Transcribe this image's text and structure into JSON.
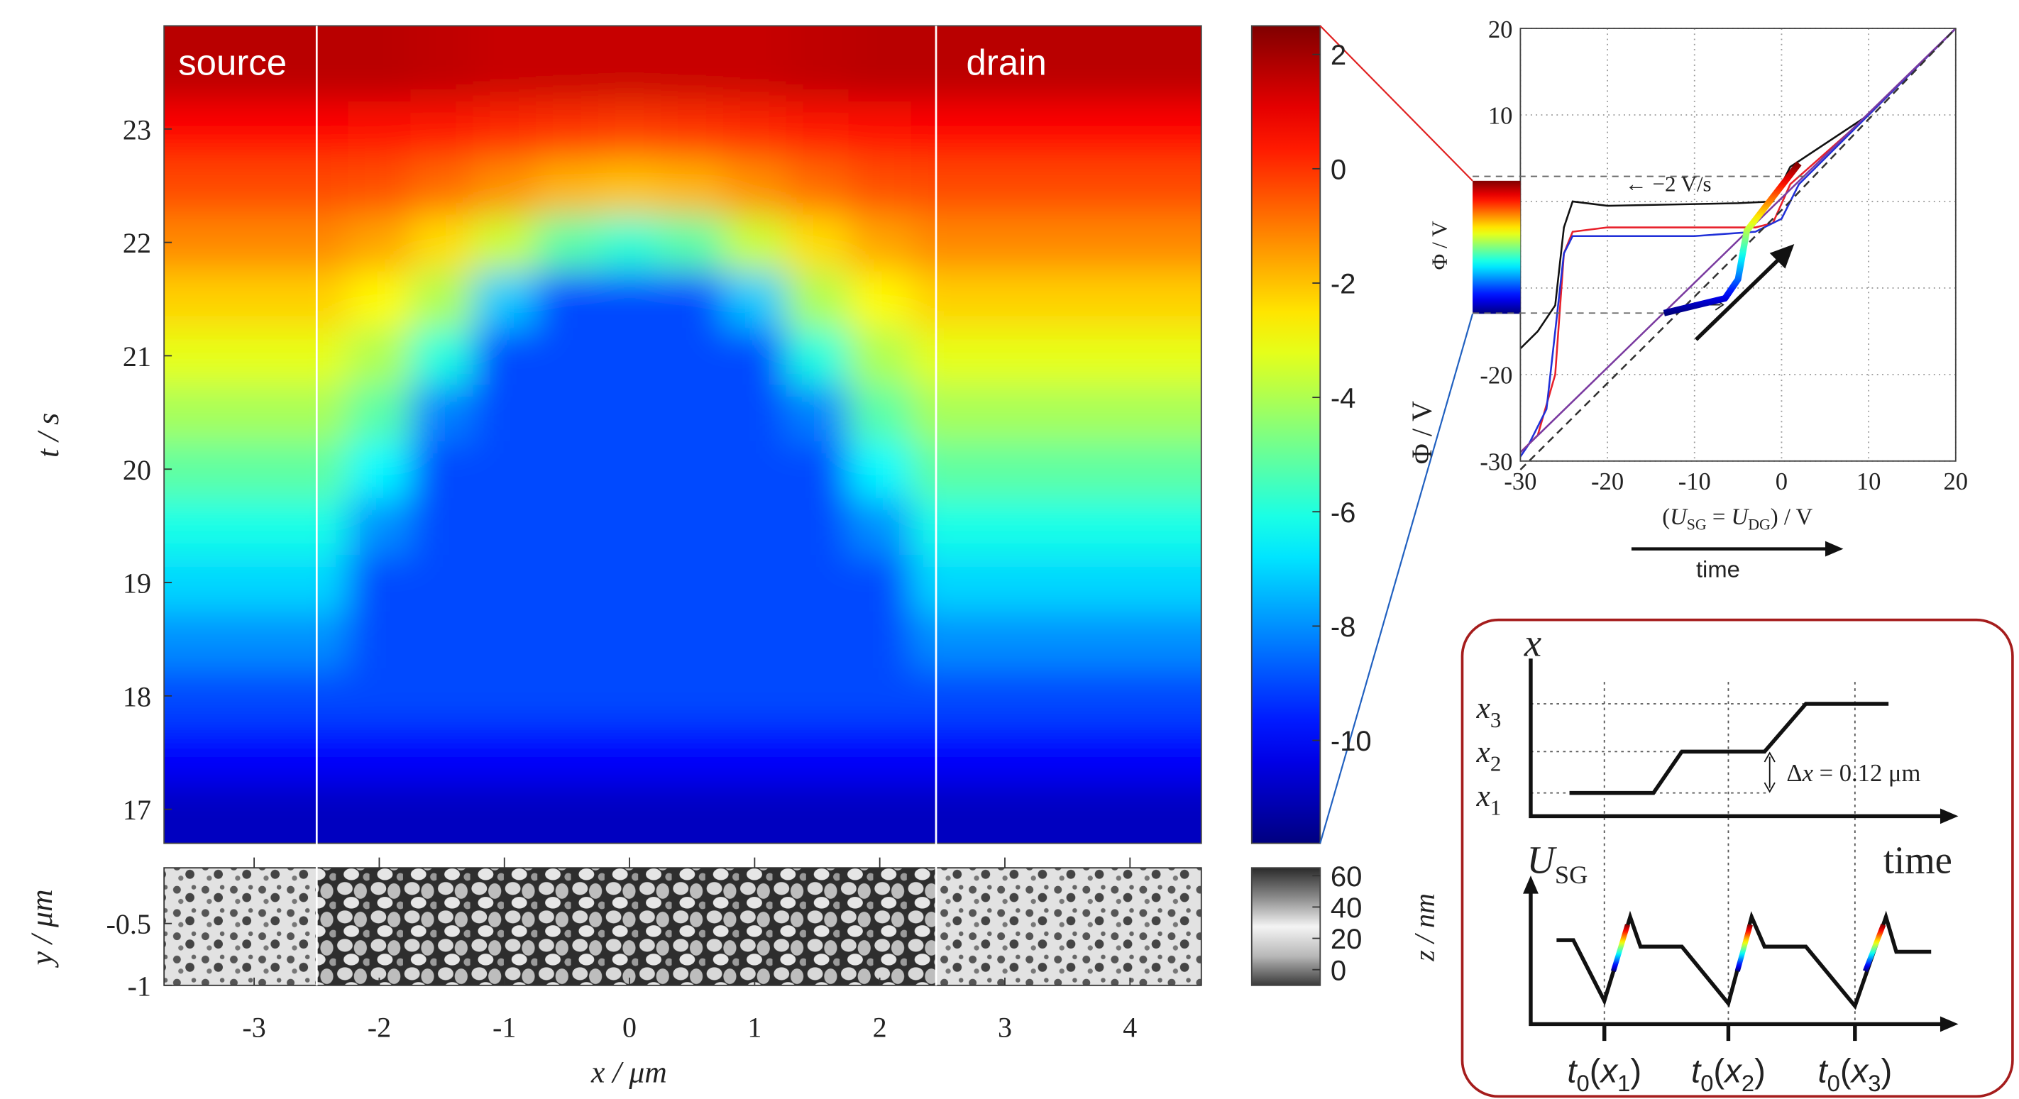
{
  "chart_data": [
    {
      "type": "heatmap",
      "colormap": "jet",
      "x": [
        -3.5,
        -3,
        -2.5,
        -2,
        -1.5,
        -1,
        -0.5,
        0,
        0.5,
        1,
        1.5,
        2,
        2.5,
        3,
        3.5,
        4,
        4.5
      ],
      "y": [
        17,
        17.5,
        18,
        18.5,
        19,
        19.5,
        20,
        20.5,
        21,
        21.5,
        22,
        22.5,
        23,
        23.5
      ],
      "z": [
        [
          -10.9,
          -10.9,
          -10.9,
          -10.9,
          -10.9,
          -10.9,
          -10.9,
          -10.9,
          -10.9,
          -10.9,
          -10.9,
          -10.9,
          -10.9,
          -10.9,
          -10.9,
          -10.9,
          -10.9
        ],
        [
          -10.0,
          -10.0,
          -10.0,
          -10.0,
          -10.0,
          -10.0,
          -10.0,
          -10.0,
          -10.0,
          -10.0,
          -10.0,
          -10.0,
          -10.0,
          -10.0,
          -10.0,
          -10.0,
          -10.0
        ],
        [
          -9.0,
          -9.0,
          -9.0,
          -9.0,
          -9.0,
          -9.0,
          -9.0,
          -9.0,
          -9.0,
          -9.0,
          -9.0,
          -9.0,
          -9.0,
          -9.0,
          -9.0,
          -9.0,
          -9.0
        ],
        [
          -8.0,
          -8.0,
          -8.0,
          -9.0,
          -9.0,
          -9.0,
          -9.0,
          -9.0,
          -9.0,
          -9.0,
          -9.0,
          -9.0,
          -8.0,
          -8.0,
          -8.0,
          -8.0,
          -8.0
        ],
        [
          -7.0,
          -7.0,
          -7.0,
          -9.0,
          -9.0,
          -9.0,
          -9.0,
          -9.0,
          -9.0,
          -9.0,
          -9.0,
          -9.0,
          -7.0,
          -7.0,
          -7.0,
          -7.0,
          -7.0
        ],
        [
          -6.1,
          -6.1,
          -6.1,
          -8.0,
          -9.0,
          -9.0,
          -9.0,
          -9.0,
          -9.0,
          -9.0,
          -9.0,
          -8.0,
          -6.1,
          -6.1,
          -6.1,
          -6.1,
          -6.1
        ],
        [
          -5.1,
          -5.1,
          -5.1,
          -6.5,
          -9.0,
          -9.0,
          -9.0,
          -9.0,
          -9.0,
          -9.0,
          -9.0,
          -6.5,
          -5.1,
          -5.1,
          -5.1,
          -5.1,
          -5.1
        ],
        [
          -4.1,
          -4.1,
          -4.1,
          -5.2,
          -8.2,
          -9.0,
          -9.0,
          -9.0,
          -9.0,
          -9.0,
          -8.2,
          -5.2,
          -4.1,
          -4.1,
          -4.1,
          -4.1,
          -4.1
        ],
        [
          -3.2,
          -3.2,
          -3.2,
          -4.0,
          -6.0,
          -9.0,
          -9.0,
          -9.0,
          -9.0,
          -9.0,
          -6.0,
          -4.0,
          -3.2,
          -3.2,
          -3.2,
          -3.2,
          -3.2
        ],
        [
          -2.2,
          -2.2,
          -2.2,
          -2.8,
          -4.0,
          -7.2,
          -9.0,
          -9.0,
          -9.0,
          -7.2,
          -4.0,
          -2.8,
          -2.2,
          -2.2,
          -2.2,
          -2.2,
          -2.2
        ],
        [
          -1.2,
          -1.2,
          -1.2,
          -1.6,
          -2.4,
          -3.6,
          -5.2,
          -5.8,
          -5.2,
          -3.6,
          -2.4,
          -1.6,
          -1.2,
          -1.2,
          -1.2,
          -1.2,
          -1.2
        ],
        [
          -0.3,
          -0.3,
          -0.3,
          -0.4,
          -0.8,
          -1.3,
          -1.8,
          -2.0,
          -1.8,
          -1.3,
          -0.8,
          -0.4,
          -0.3,
          -0.3,
          -0.3,
          -0.3,
          -0.3
        ],
        [
          0.7,
          0.7,
          0.7,
          0.6,
          0.4,
          0.2,
          0.0,
          -0.1,
          0.0,
          0.2,
          0.4,
          0.6,
          0.7,
          0.7,
          0.7,
          0.7,
          0.7
        ],
        [
          1.7,
          1.7,
          1.7,
          1.7,
          1.6,
          1.5,
          1.5,
          1.5,
          1.5,
          1.5,
          1.6,
          1.7,
          1.7,
          1.7,
          1.7,
          1.7,
          1.7
        ]
      ],
      "xlim": [
        -3.72,
        4.57
      ],
      "ylim": [
        16.7,
        23.91
      ],
      "yticks": [
        17,
        18,
        19,
        20,
        21,
        22,
        23
      ],
      "ylabel": "t / s",
      "clim": [
        -11.8,
        2.5
      ],
      "cticks": [
        2,
        0,
        -2,
        -4,
        -6,
        -8,
        -10
      ],
      "annotations": [
        "source",
        "drain"
      ],
      "electrode_edges": [
        -2.5,
        2.45
      ]
    },
    {
      "type": "image",
      "xlim": [
        -3.72,
        4.57
      ],
      "xticks": [
        -3,
        -2,
        -1,
        0,
        1,
        2,
        3,
        4
      ],
      "xlabel": "x / μm",
      "ylim": [
        -1,
        -0.05
      ],
      "yticks": [
        -0.5,
        -1
      ],
      "ylabel": "y / μm",
      "clim": [
        -10,
        65
      ],
      "cticks": [
        60,
        40,
        20,
        0
      ],
      "clabel": "z / nm"
    },
    {
      "type": "line",
      "xlim": [
        -30,
        20
      ],
      "ylim": [
        -30,
        20
      ],
      "xticks": [
        -30,
        -20,
        -10,
        0,
        10,
        20
      ],
      "yticks": [
        -30,
        -20,
        10,
        20
      ],
      "ygrid": [
        -30,
        -20,
        -10,
        0,
        10,
        20
      ],
      "grid": true,
      "xlabel_parts": [
        "(",
        "U",
        "SG",
        " = ",
        "U",
        "DG",
        ") / V"
      ],
      "ylabel": "Φ / V",
      "inset_ylabel": "Φ / V",
      "sublabel": "time",
      "annotation": "← −2 V/s",
      "guides": [
        -12.9,
        2.9
      ],
      "series": [
        {
          "color": "#111111",
          "x": [
            -30,
            -28,
            -26,
            -25,
            -24,
            -20,
            -10,
            -5,
            -1,
            1,
            10,
            20
          ],
          "values": [
            -17,
            -15,
            -12,
            -3,
            0,
            -0.5,
            -0.3,
            -0.2,
            0,
            4,
            10,
            20
          ]
        },
        {
          "color": "#e8202a",
          "x": [
            -30,
            -28,
            -26,
            -25,
            -24,
            -20,
            -10,
            -3,
            -1,
            1,
            10,
            20
          ],
          "values": [
            -29,
            -27,
            -20,
            -6,
            -3.5,
            -3,
            -3,
            -3,
            -2.5,
            2,
            10,
            20
          ]
        },
        {
          "color": "#2030d8",
          "x": [
            -30,
            -29,
            -27,
            -25,
            -24,
            -20,
            -10,
            -3,
            0,
            2,
            10,
            20
          ],
          "values": [
            -29.5,
            -28,
            -24,
            -6,
            -4,
            -4,
            -4,
            -3.5,
            -2,
            2,
            10,
            20
          ]
        },
        {
          "color": "#7a3aa0",
          "x": [
            -30,
            20
          ],
          "values": [
            -29,
            20
          ]
        },
        {
          "color": "#333333",
          "dashed": true,
          "x": [
            -30,
            -20,
            -10,
            0,
            20
          ],
          "values": [
            -31,
            -21,
            -11,
            -1,
            20
          ]
        }
      ],
      "highlight": {
        "colormap": "jet",
        "x": [
          -13.5,
          -6.5,
          -5,
          -4,
          2
        ],
        "values": [
          -12.9,
          -11.2,
          -9,
          -3.4,
          4.4
        ]
      }
    }
  ],
  "diagram": {
    "x_axis": "x",
    "levels": [
      [
        "x",
        "3"
      ],
      [
        "x",
        "2"
      ],
      [
        "x",
        "1"
      ]
    ],
    "delta": [
      "Δ",
      "x",
      " = 0.12 μm"
    ],
    "time_label": "time",
    "usg": [
      "U",
      "SG"
    ],
    "t0": [
      [
        "t",
        "0",
        "(",
        "x",
        "1",
        ")"
      ],
      [
        "t",
        "0",
        "(",
        "x",
        "2",
        ")"
      ],
      [
        "t",
        "0",
        "(",
        "x",
        "3",
        ")"
      ]
    ]
  }
}
